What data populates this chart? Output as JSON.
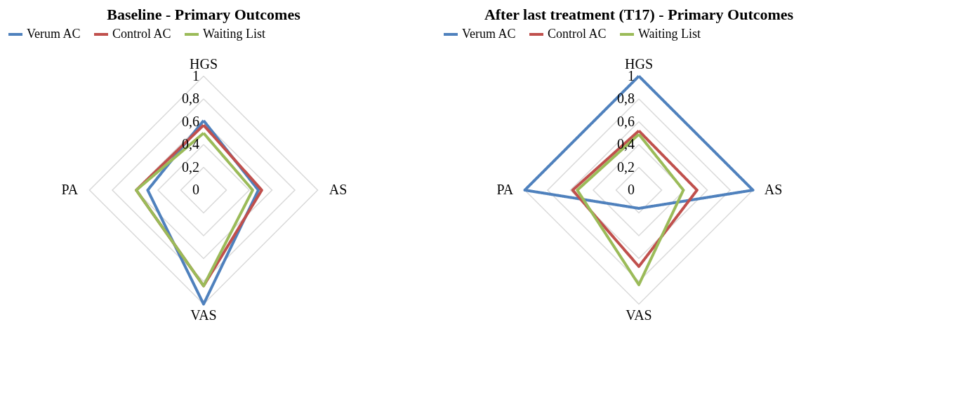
{
  "chart_data": [
    {
      "type": "radar",
      "title": "Baseline - Primary Outcomes",
      "categories": [
        "HGS",
        "AS",
        "VAS",
        "PA"
      ],
      "ylim": [
        0,
        1
      ],
      "yticks": [
        {
          "value": 0,
          "label": "0"
        },
        {
          "value": 0.2,
          "label": "0,2"
        },
        {
          "value": 0.4,
          "label": "0,4"
        },
        {
          "value": 0.6,
          "label": "0,6"
        },
        {
          "value": 0.8,
          "label": "0,8"
        },
        {
          "value": 1,
          "label": "1"
        }
      ],
      "grid": true,
      "legend": "top",
      "marker": "none",
      "line_style": "solid",
      "series": [
        {
          "name": "Verum AC",
          "color": "#4f81bd",
          "values": [
            0.61,
            0.48,
            1.0,
            0.49
          ]
        },
        {
          "name": "Control AC",
          "color": "#c0504d",
          "values": [
            0.57,
            0.51,
            0.84,
            0.59
          ]
        },
        {
          "name": "Waiting List",
          "color": "#9bbb59",
          "values": [
            0.5,
            0.43,
            0.84,
            0.59
          ]
        }
      ]
    },
    {
      "type": "radar",
      "title": "After last treatment (T17) - Primary Outcomes",
      "categories": [
        "HGS",
        "AS",
        "VAS",
        "PA"
      ],
      "ylim": [
        0,
        1
      ],
      "yticks": [
        {
          "value": 0,
          "label": "0"
        },
        {
          "value": 0.2,
          "label": "0,2"
        },
        {
          "value": 0.4,
          "label": "0,4"
        },
        {
          "value": 0.6,
          "label": "0,6"
        },
        {
          "value": 0.8,
          "label": "0,8"
        },
        {
          "value": 1,
          "label": "1"
        }
      ],
      "grid": true,
      "legend": "top",
      "marker": "none",
      "line_style": "solid",
      "series": [
        {
          "name": "Verum AC",
          "color": "#4f81bd",
          "values": [
            1.0,
            1.0,
            0.16,
            1.0
          ]
        },
        {
          "name": "Control AC",
          "color": "#c0504d",
          "values": [
            0.52,
            0.51,
            0.67,
            0.58
          ]
        },
        {
          "name": "Waiting List",
          "color": "#9bbb59",
          "values": [
            0.49,
            0.39,
            0.83,
            0.54
          ]
        }
      ]
    }
  ]
}
